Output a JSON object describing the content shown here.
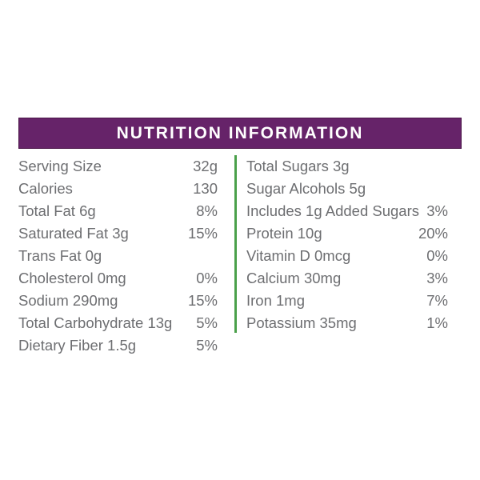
{
  "header": {
    "title": "NUTRITION INFORMATION",
    "bg_color": "#662369",
    "border_color": "#4a1548",
    "text_color": "#ffffff"
  },
  "style": {
    "body_text_color": "#6d6e71",
    "divider_color": "#4aa04a",
    "background_color": "#ffffff"
  },
  "left_column": [
    {
      "label": "Serving Size",
      "value": "32g"
    },
    {
      "label": "Calories",
      "value": "130"
    },
    {
      "label": "Total Fat 6g",
      "value": "8%"
    },
    {
      "label": "Saturated Fat 3g",
      "value": "15%"
    },
    {
      "label": "Trans Fat 0g",
      "value": ""
    },
    {
      "label": "Cholesterol 0mg",
      "value": "0%"
    },
    {
      "label": "Sodium 290mg",
      "value": "15%"
    },
    {
      "label": "Total Carbohydrate 13g",
      "value": "5%"
    },
    {
      "label": "Dietary Fiber 1.5g",
      "value": "5%"
    }
  ],
  "right_column": [
    {
      "label": "Total Sugars 3g",
      "value": ""
    },
    {
      "label": "Sugar Alcohols 5g",
      "value": ""
    },
    {
      "label": "Includes 1g Added Sugars",
      "value": "3%"
    },
    {
      "label": "Protein 10g",
      "value": "20%"
    },
    {
      "label": "Vitamin D 0mcg",
      "value": "0%"
    },
    {
      "label": "Calcium 30mg",
      "value": "3%"
    },
    {
      "label": "Iron 1mg",
      "value": "7%"
    },
    {
      "label": "Potassium 35mg",
      "value": "1%"
    }
  ]
}
